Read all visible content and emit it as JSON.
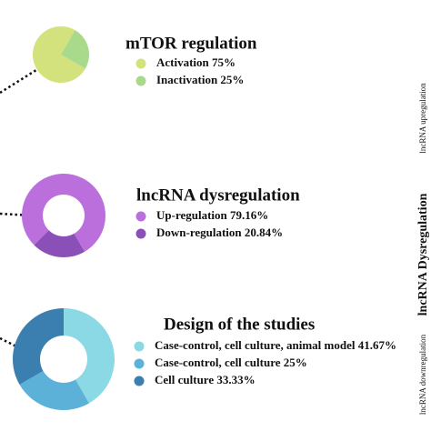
{
  "chart_data": [
    {
      "type": "pie",
      "title": "mTOR regulation",
      "categories": [
        "Activation",
        "Inactivation"
      ],
      "values": [
        75,
        25
      ],
      "value_labels": [
        "75%",
        "25%"
      ],
      "colors": [
        "#d3e27c",
        "#a9da8c"
      ]
    },
    {
      "type": "donut",
      "title": "lncRNA dysregulation",
      "categories": [
        "Up-regulation",
        "Down-regulation"
      ],
      "values": [
        79.16,
        20.84
      ],
      "value_labels": [
        "79.16%",
        "20.84%"
      ],
      "colors": [
        "#bb6fdc",
        "#8b50b7"
      ]
    },
    {
      "type": "donut",
      "title": "Design of the studies",
      "categories": [
        "Case-control, cell culture, animal model",
        "Case-control, cell culture",
        "Cell culture"
      ],
      "values": [
        41.67,
        25,
        33.33
      ],
      "value_labels": [
        "41.67%",
        "25%",
        "33.33%"
      ],
      "colors": [
        "#8ad9e5",
        "#5bb1d7",
        "#3b7fb1"
      ]
    }
  ],
  "side_labels": [
    "lncRNA upregulation",
    "lncRNA Dysregulation",
    "lncRNA downregulation"
  ]
}
